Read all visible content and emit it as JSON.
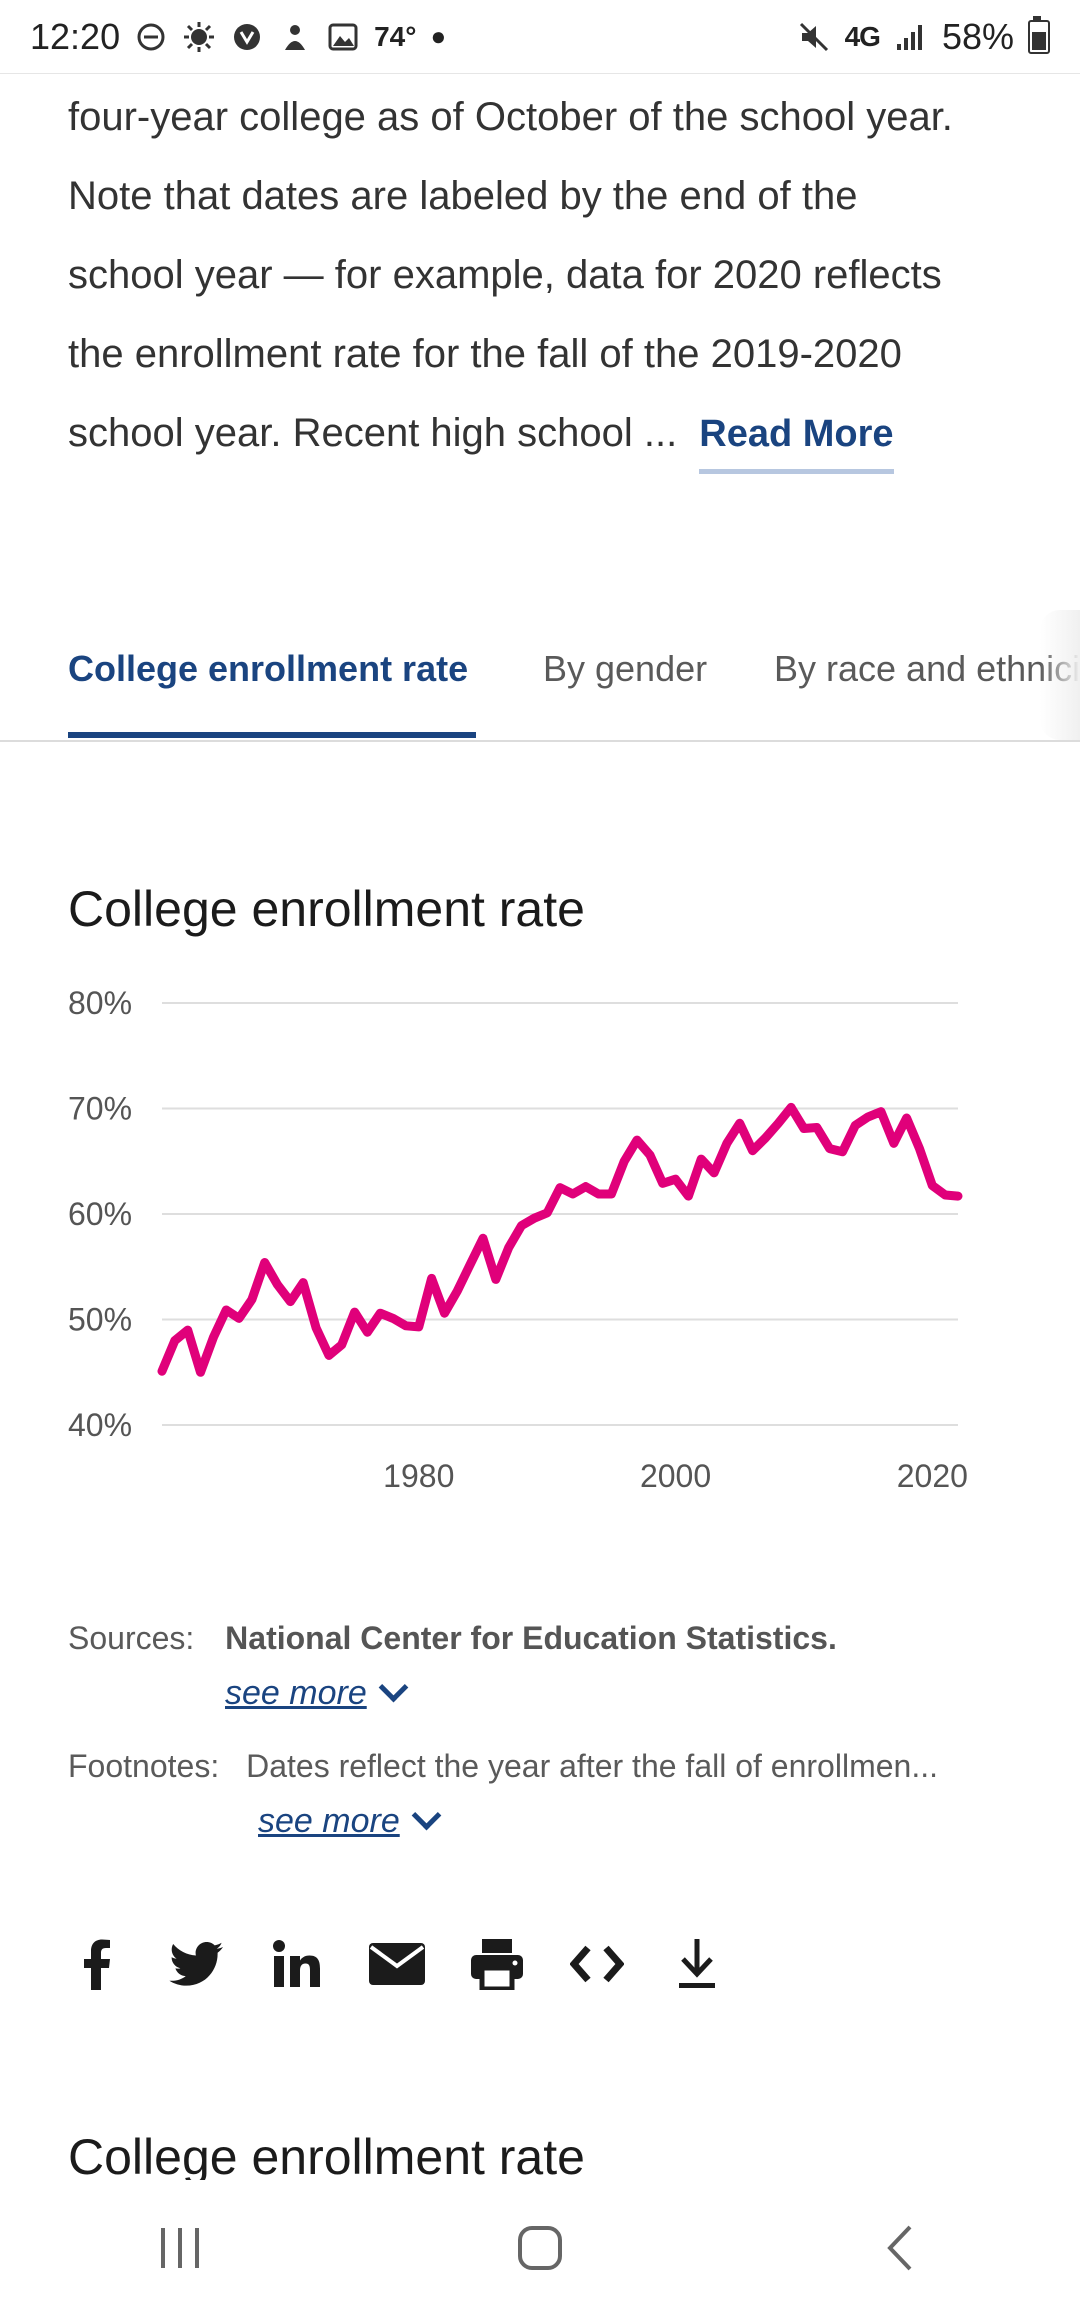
{
  "status_bar": {
    "time": "12:20",
    "temperature": "74°",
    "network": "4G",
    "battery": "58%"
  },
  "intro": {
    "lines": [
      "four-year college as of October of the school year.",
      "Note that dates are labeled by the end of the",
      "school year — for example, data for 2020 reflects",
      "the enrollment rate for the fall of the 2019-2020",
      "school year. Recent high school ..."
    ],
    "read_more": "Read More"
  },
  "tabs": [
    {
      "label": "College enrollment rate",
      "active": true
    },
    {
      "label": "By gender",
      "active": false
    },
    {
      "label": "By race and ethnicity",
      "active": false
    }
  ],
  "chart_title": "College enrollment rate",
  "chart_data": {
    "type": "line",
    "title": "College enrollment rate",
    "xlabel": "",
    "ylabel": "",
    "ylim": [
      40,
      80
    ],
    "xlim": [
      1960,
      2022
    ],
    "y_ticks": [
      "40%",
      "50%",
      "60%",
      "70%",
      "80%"
    ],
    "x_ticks": [
      "1980",
      "2000",
      "2020"
    ],
    "color": "#e0007a",
    "series": [
      {
        "name": "College enrollment rate",
        "x": [
          1960,
          1961,
          1962,
          1963,
          1964,
          1965,
          1966,
          1967,
          1968,
          1969,
          1970,
          1971,
          1972,
          1973,
          1974,
          1975,
          1976,
          1977,
          1978,
          1979,
          1980,
          1981,
          1982,
          1983,
          1984,
          1985,
          1986,
          1987,
          1988,
          1989,
          1990,
          1991,
          1992,
          1993,
          1994,
          1995,
          1996,
          1997,
          1998,
          1999,
          2000,
          2001,
          2002,
          2003,
          2004,
          2005,
          2006,
          2007,
          2008,
          2009,
          2010,
          2011,
          2012,
          2013,
          2014,
          2015,
          2016,
          2017,
          2018,
          2019,
          2020,
          2021,
          2022
        ],
        "values": [
          45.1,
          48.0,
          49.0,
          45.0,
          48.3,
          50.9,
          50.1,
          51.9,
          55.4,
          53.3,
          51.7,
          53.5,
          49.2,
          46.6,
          47.6,
          50.7,
          48.8,
          50.6,
          50.1,
          49.4,
          49.3,
          53.9,
          50.6,
          52.7,
          55.2,
          57.7,
          53.8,
          56.8,
          58.9,
          59.6,
          60.1,
          62.5,
          61.9,
          62.6,
          61.9,
          61.9,
          65.0,
          67.0,
          65.6,
          62.9,
          63.3,
          61.7,
          65.2,
          63.9,
          66.7,
          68.6,
          66.0,
          67.2,
          68.6,
          70.1,
          68.1,
          68.2,
          66.2,
          65.9,
          68.4,
          69.2,
          69.7,
          66.7,
          69.1,
          66.2,
          62.7,
          61.8,
          61.7
        ]
      }
    ]
  },
  "sources": {
    "label": "Sources:",
    "value": "National Center for Education Statistics.",
    "see_more": "see more"
  },
  "footnotes": {
    "label": "Footnotes:",
    "value": "Dates reflect the year after the fall of enrollmen...",
    "see_more": "see more"
  },
  "share_icons": [
    "facebook-icon",
    "twitter-icon",
    "linkedin-icon",
    "email-icon",
    "print-icon",
    "embed-icon",
    "download-icon"
  ],
  "bottom_title": "College enrollment rate"
}
